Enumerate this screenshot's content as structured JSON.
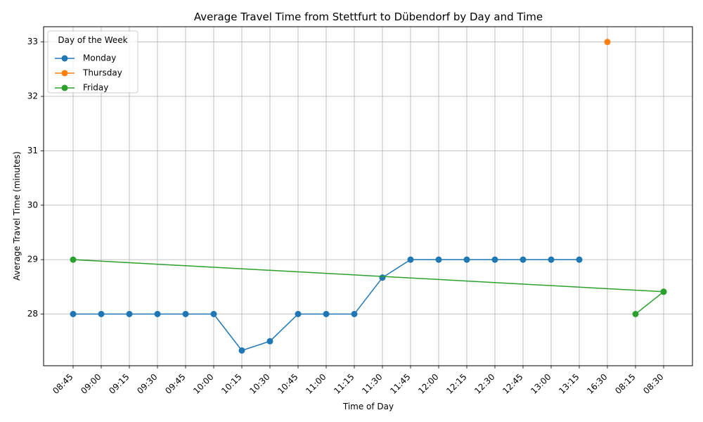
{
  "chart_data": {
    "type": "line",
    "title": "Average Travel Time from Stettfurt to Dübendorf by Day and Time",
    "xlabel": "Time of Day",
    "ylabel": "Average Travel Time (minutes)",
    "categories": [
      "08:45",
      "09:00",
      "09:15",
      "09:30",
      "09:45",
      "10:00",
      "10:15",
      "10:30",
      "10:45",
      "11:00",
      "11:15",
      "11:30",
      "11:45",
      "12:00",
      "12:15",
      "12:30",
      "12:45",
      "13:00",
      "13:15",
      "16:30",
      "08:15",
      "08:30"
    ],
    "ylim": [
      27.05,
      33.28
    ],
    "yticks": [
      28,
      29,
      30,
      31,
      32,
      33
    ],
    "grid": true,
    "legend": {
      "title": "Day of the Week",
      "placement": "top-left"
    },
    "series": [
      {
        "name": "Monday",
        "color": "#1f77b4",
        "x": [
          "08:45",
          "09:00",
          "09:15",
          "09:30",
          "09:45",
          "10:00",
          "10:15",
          "10:30",
          "10:45",
          "11:00",
          "11:15",
          "11:30",
          "11:45",
          "12:00",
          "12:15",
          "12:30",
          "12:45",
          "13:00",
          "13:15"
        ],
        "values": [
          28,
          28,
          28,
          28,
          28,
          28,
          27.33,
          27.5,
          28,
          28,
          28,
          28.67,
          29,
          29,
          29,
          29,
          29,
          29,
          29
        ]
      },
      {
        "name": "Thursday",
        "color": "#ff7f0e",
        "x": [
          "16:30"
        ],
        "values": [
          33
        ]
      },
      {
        "name": "Friday",
        "color": "#2ca02c",
        "x": [
          "08:45",
          "08:30",
          "08:15",
          "08:30"
        ],
        "values": [
          29,
          28.41,
          28,
          28.41
        ]
      }
    ]
  }
}
